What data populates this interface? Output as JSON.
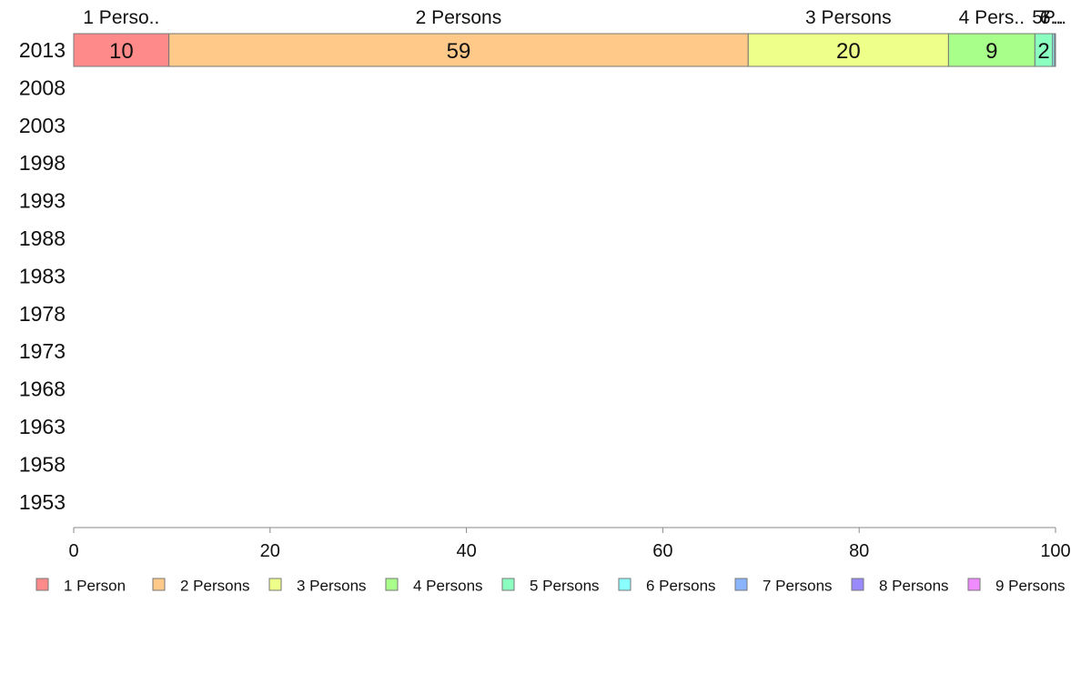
{
  "chart_data": {
    "type": "bar",
    "orientation": "horizontal",
    "stacked": true,
    "categories": [
      "2013",
      "2008",
      "2003",
      "1998",
      "1993",
      "1988",
      "1983",
      "1978",
      "1973",
      "1968",
      "1963",
      "1958",
      "1953"
    ],
    "series": [
      {
        "name": "1 Person",
        "color": "#ff8a8a",
        "values": [
          9.7,
          0,
          0,
          0,
          0,
          0,
          0,
          0,
          0,
          0,
          0,
          0,
          0
        ]
      },
      {
        "name": "2 Persons",
        "color": "#ffc98a",
        "values": [
          59.0,
          0,
          0,
          0,
          0,
          0,
          0,
          0,
          0,
          0,
          0,
          0,
          0
        ]
      },
      {
        "name": "3 Persons",
        "color": "#eeff8a",
        "values": [
          20.4,
          0,
          0,
          0,
          0,
          0,
          0,
          0,
          0,
          0,
          0,
          0,
          0
        ]
      },
      {
        "name": "4 Persons",
        "color": "#a8ff8a",
        "values": [
          8.8,
          0,
          0,
          0,
          0,
          0,
          0,
          0,
          0,
          0,
          0,
          0,
          0
        ]
      },
      {
        "name": "5 Persons",
        "color": "#8affc0",
        "values": [
          1.8,
          0,
          0,
          0,
          0,
          0,
          0,
          0,
          0,
          0,
          0,
          0,
          0
        ]
      },
      {
        "name": "6 Persons",
        "color": "#8affff",
        "values": [
          0.2,
          0,
          0,
          0,
          0,
          0,
          0,
          0,
          0,
          0,
          0,
          0,
          0
        ]
      },
      {
        "name": "7 Persons",
        "color": "#8ab4ff",
        "values": [
          0.1,
          0,
          0,
          0,
          0,
          0,
          0,
          0,
          0,
          0,
          0,
          0,
          0
        ]
      },
      {
        "name": "8 Persons",
        "color": "#9a8aff",
        "values": [
          0,
          0,
          0,
          0,
          0,
          0,
          0,
          0,
          0,
          0,
          0,
          0,
          0
        ]
      },
      {
        "name": "9 Persons",
        "color": "#f08aff",
        "values": [
          0,
          0,
          0,
          0,
          0,
          0,
          0,
          0,
          0,
          0,
          0,
          0,
          0
        ]
      }
    ],
    "data_labels": [
      "10",
      "59",
      "20",
      "9",
      "2"
    ],
    "top_labels": [
      "1 Perso..",
      "2 Persons",
      "3 Persons",
      "4 Pers..",
      "5P..",
      "6..",
      "7..."
    ],
    "xlim": [
      0,
      100
    ],
    "xticks": [
      "0",
      "20",
      "40",
      "60",
      "80",
      "100"
    ],
    "title": "",
    "xlabel": "",
    "ylabel": "",
    "grid": false,
    "legend_position": "bottom"
  }
}
